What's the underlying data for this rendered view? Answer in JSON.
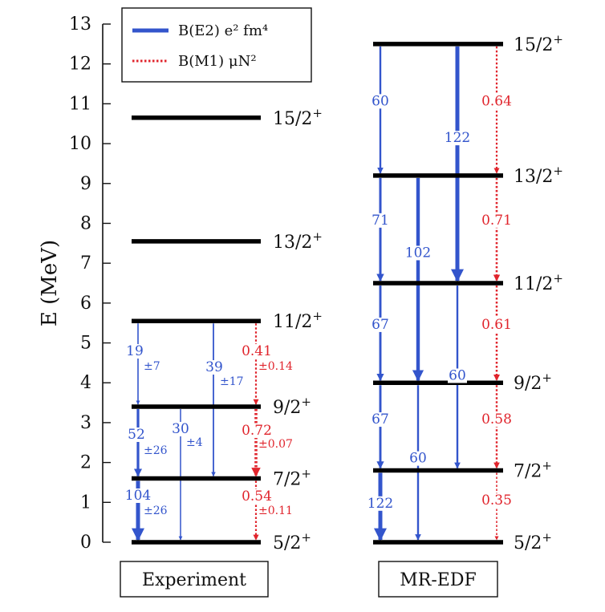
{
  "chart_data": {
    "type": "level-scheme",
    "ylabel": "E (MeV)",
    "ylim": [
      0,
      13
    ],
    "yticks": [
      "0",
      "1",
      "2",
      "3",
      "4",
      "5",
      "6",
      "7",
      "8",
      "9",
      "10",
      "11",
      "12",
      "13"
    ],
    "legend": {
      "placement": "top-left",
      "entries": [
        {
          "label": "B(E2) e² fm⁴",
          "color": "#3355cc",
          "style": "solid"
        },
        {
          "label": "B(M1) μN²",
          "color": "#e0242c",
          "style": "dotted"
        }
      ]
    },
    "colors": {
      "e2": "#3355cc",
      "m1": "#e0242c",
      "level": "#000000"
    },
    "panels": [
      {
        "name": "Experiment",
        "levels": [
          {
            "label": "5/2+",
            "energy": 0.0
          },
          {
            "label": "7/2+",
            "energy": 1.6
          },
          {
            "label": "9/2+",
            "energy": 3.4
          },
          {
            "label": "11/2+",
            "energy": 5.55
          },
          {
            "label": "13/2+",
            "energy": 7.55
          },
          {
            "label": "15/2+",
            "energy": 10.65
          }
        ],
        "transitions": [
          {
            "type": "E2",
            "from": "11/2+",
            "to": "9/2+",
            "value": "19",
            "uncertainty": "±7"
          },
          {
            "type": "E2",
            "from": "11/2+",
            "to": "7/2+",
            "value": "39",
            "uncertainty": "±17"
          },
          {
            "type": "M1",
            "from": "11/2+",
            "to": "9/2+",
            "value": "0.41",
            "uncertainty": "±0.14"
          },
          {
            "type": "E2",
            "from": "9/2+",
            "to": "7/2+",
            "value": "52",
            "uncertainty": "±26"
          },
          {
            "type": "E2",
            "from": "9/2+",
            "to": "5/2+",
            "value": "30",
            "uncertainty": "±4"
          },
          {
            "type": "M1",
            "from": "9/2+",
            "to": "7/2+",
            "value": "0.72",
            "uncertainty": "±0.07"
          },
          {
            "type": "E2",
            "from": "7/2+",
            "to": "5/2+",
            "value": "104",
            "uncertainty": "±26"
          },
          {
            "type": "M1",
            "from": "7/2+",
            "to": "5/2+",
            "value": "0.54",
            "uncertainty": "±0.11"
          }
        ]
      },
      {
        "name": "MR-EDF",
        "levels": [
          {
            "label": "5/2+",
            "energy": 0.0
          },
          {
            "label": "7/2+",
            "energy": 1.8
          },
          {
            "label": "9/2+",
            "energy": 4.0
          },
          {
            "label": "11/2+",
            "energy": 6.5
          },
          {
            "label": "13/2+",
            "energy": 9.2
          },
          {
            "label": "15/2+",
            "energy": 12.5
          }
        ],
        "transitions": [
          {
            "type": "E2",
            "from": "15/2+",
            "to": "13/2+",
            "value": "60"
          },
          {
            "type": "E2",
            "from": "15/2+",
            "to": "11/2+",
            "value": "122"
          },
          {
            "type": "M1",
            "from": "15/2+",
            "to": "13/2+",
            "value": "0.64"
          },
          {
            "type": "E2",
            "from": "13/2+",
            "to": "11/2+",
            "value": "71"
          },
          {
            "type": "E2",
            "from": "13/2+",
            "to": "9/2+",
            "value": "102"
          },
          {
            "type": "M1",
            "from": "13/2+",
            "to": "11/2+",
            "value": "0.71"
          },
          {
            "type": "E2",
            "from": "11/2+",
            "to": "9/2+",
            "value": "67"
          },
          {
            "type": "E2",
            "from": "11/2+",
            "to": "7/2+",
            "value": "60"
          },
          {
            "type": "M1",
            "from": "11/2+",
            "to": "9/2+",
            "value": "0.61"
          },
          {
            "type": "E2",
            "from": "9/2+",
            "to": "7/2+",
            "value": "67"
          },
          {
            "type": "E2",
            "from": "9/2+",
            "to": "5/2+",
            "value": "60"
          },
          {
            "type": "M1",
            "from": "9/2+",
            "to": "7/2+",
            "value": "0.58"
          },
          {
            "type": "E2",
            "from": "7/2+",
            "to": "5/2+",
            "value": "122"
          },
          {
            "type": "M1",
            "from": "7/2+",
            "to": "5/2+",
            "value": "0.35"
          }
        ]
      }
    ]
  }
}
